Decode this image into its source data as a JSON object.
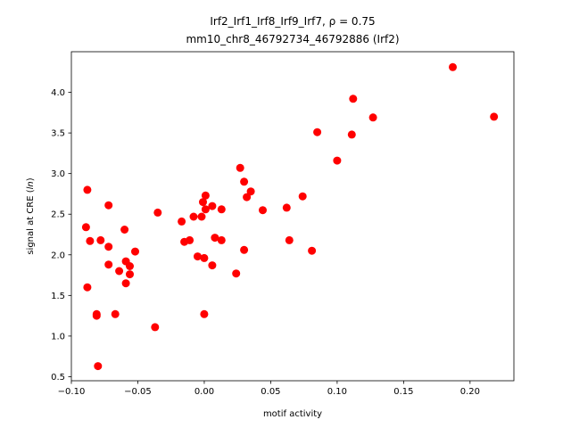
{
  "chart_data": {
    "type": "scatter",
    "title_line1": "Irf2_Irf1_Irf8_Irf9_Irf7, ρ = 0.75",
    "title_line2": "mm10_chr8_46792734_46792886 (Irf2)",
    "xlabel": "motif activity",
    "ylabel_prefix": "signal at CRE (",
    "ylabel_italic": "ln",
    "ylabel_suffix": ")",
    "xlim": [
      -0.1,
      0.233
    ],
    "ylim": [
      0.45,
      4.5
    ],
    "xticks": [
      -0.1,
      -0.05,
      0.0,
      0.05,
      0.1,
      0.15,
      0.2
    ],
    "xtick_labels": [
      "−0.10",
      "−0.05",
      "0.00",
      "0.05",
      "0.10",
      "0.15",
      "0.20"
    ],
    "yticks": [
      0.5,
      1.0,
      1.5,
      2.0,
      2.5,
      3.0,
      3.5,
      4.0
    ],
    "ytick_labels": [
      "0.5",
      "1.0",
      "1.5",
      "2.0",
      "2.5",
      "3.0",
      "3.5",
      "4.0"
    ],
    "marker_color": "#ff0000",
    "points": [
      {
        "x": -0.088,
        "y": 2.8
      },
      {
        "x": -0.089,
        "y": 2.34
      },
      {
        "x": -0.086,
        "y": 2.17
      },
      {
        "x": -0.088,
        "y": 1.6
      },
      {
        "x": -0.081,
        "y": 1.27
      },
      {
        "x": -0.081,
        "y": 1.25
      },
      {
        "x": -0.08,
        "y": 0.63
      },
      {
        "x": -0.078,
        "y": 2.18
      },
      {
        "x": -0.072,
        "y": 2.61
      },
      {
        "x": -0.072,
        "y": 2.1
      },
      {
        "x": -0.072,
        "y": 1.88
      },
      {
        "x": -0.067,
        "y": 1.27
      },
      {
        "x": -0.064,
        "y": 1.8
      },
      {
        "x": -0.06,
        "y": 2.31
      },
      {
        "x": -0.059,
        "y": 1.92
      },
      {
        "x": -0.059,
        "y": 1.65
      },
      {
        "x": -0.056,
        "y": 1.86
      },
      {
        "x": -0.056,
        "y": 1.76
      },
      {
        "x": -0.052,
        "y": 2.04
      },
      {
        "x": -0.037,
        "y": 1.11
      },
      {
        "x": -0.035,
        "y": 2.52
      },
      {
        "x": -0.017,
        "y": 2.41
      },
      {
        "x": -0.015,
        "y": 2.16
      },
      {
        "x": -0.011,
        "y": 2.18
      },
      {
        "x": -0.008,
        "y": 2.47
      },
      {
        "x": -0.005,
        "y": 1.98
      },
      {
        "x": -0.002,
        "y": 2.47
      },
      {
        "x": -0.001,
        "y": 2.65
      },
      {
        "x": 0.001,
        "y": 2.73
      },
      {
        "x": 0.001,
        "y": 2.56
      },
      {
        "x": 0.0,
        "y": 1.96
      },
      {
        "x": 0.0,
        "y": 1.27
      },
      {
        "x": 0.006,
        "y": 2.6
      },
      {
        "x": 0.006,
        "y": 1.87
      },
      {
        "x": 0.008,
        "y": 2.21
      },
      {
        "x": 0.013,
        "y": 2.56
      },
      {
        "x": 0.013,
        "y": 2.18
      },
      {
        "x": 0.024,
        "y": 1.77
      },
      {
        "x": 0.027,
        "y": 3.07
      },
      {
        "x": 0.03,
        "y": 2.9
      },
      {
        "x": 0.03,
        "y": 2.06
      },
      {
        "x": 0.032,
        "y": 2.71
      },
      {
        "x": 0.035,
        "y": 2.78
      },
      {
        "x": 0.044,
        "y": 2.55
      },
      {
        "x": 0.062,
        "y": 2.58
      },
      {
        "x": 0.064,
        "y": 2.18
      },
      {
        "x": 0.074,
        "y": 2.72
      },
      {
        "x": 0.081,
        "y": 2.05
      },
      {
        "x": 0.085,
        "y": 3.51
      },
      {
        "x": 0.1,
        "y": 3.16
      },
      {
        "x": 0.111,
        "y": 3.48
      },
      {
        "x": 0.112,
        "y": 3.92
      },
      {
        "x": 0.127,
        "y": 3.69
      },
      {
        "x": 0.187,
        "y": 4.31
      },
      {
        "x": 0.218,
        "y": 3.7
      }
    ]
  }
}
